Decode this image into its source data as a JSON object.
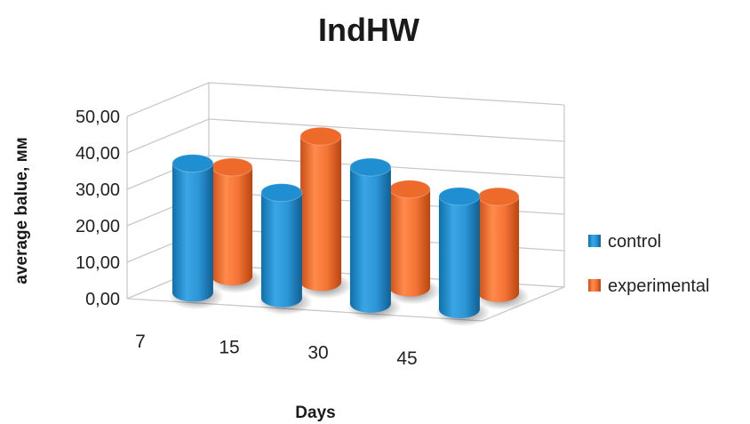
{
  "chart_data": {
    "type": "bar",
    "title": "IndHW",
    "xlabel": "Days",
    "ylabel": "average balue, мм",
    "categories": [
      "7",
      "15",
      "30",
      "45"
    ],
    "series": [
      {
        "name": "control",
        "values": [
          35.5,
          29.0,
          37.5,
          31.0
        ],
        "color": "#1f8fd2"
      },
      {
        "name": "experimental",
        "values": [
          30.0,
          40.0,
          27.0,
          26.5
        ],
        "color": "#ee6a2b"
      }
    ],
    "yticks": [
      "0,00",
      "10,00",
      "20,00",
      "30,00",
      "40,00",
      "50,00"
    ],
    "ylim": [
      0,
      50
    ],
    "grid": true,
    "legend_position": "right",
    "projection": "3d-clustered-cylinder"
  }
}
